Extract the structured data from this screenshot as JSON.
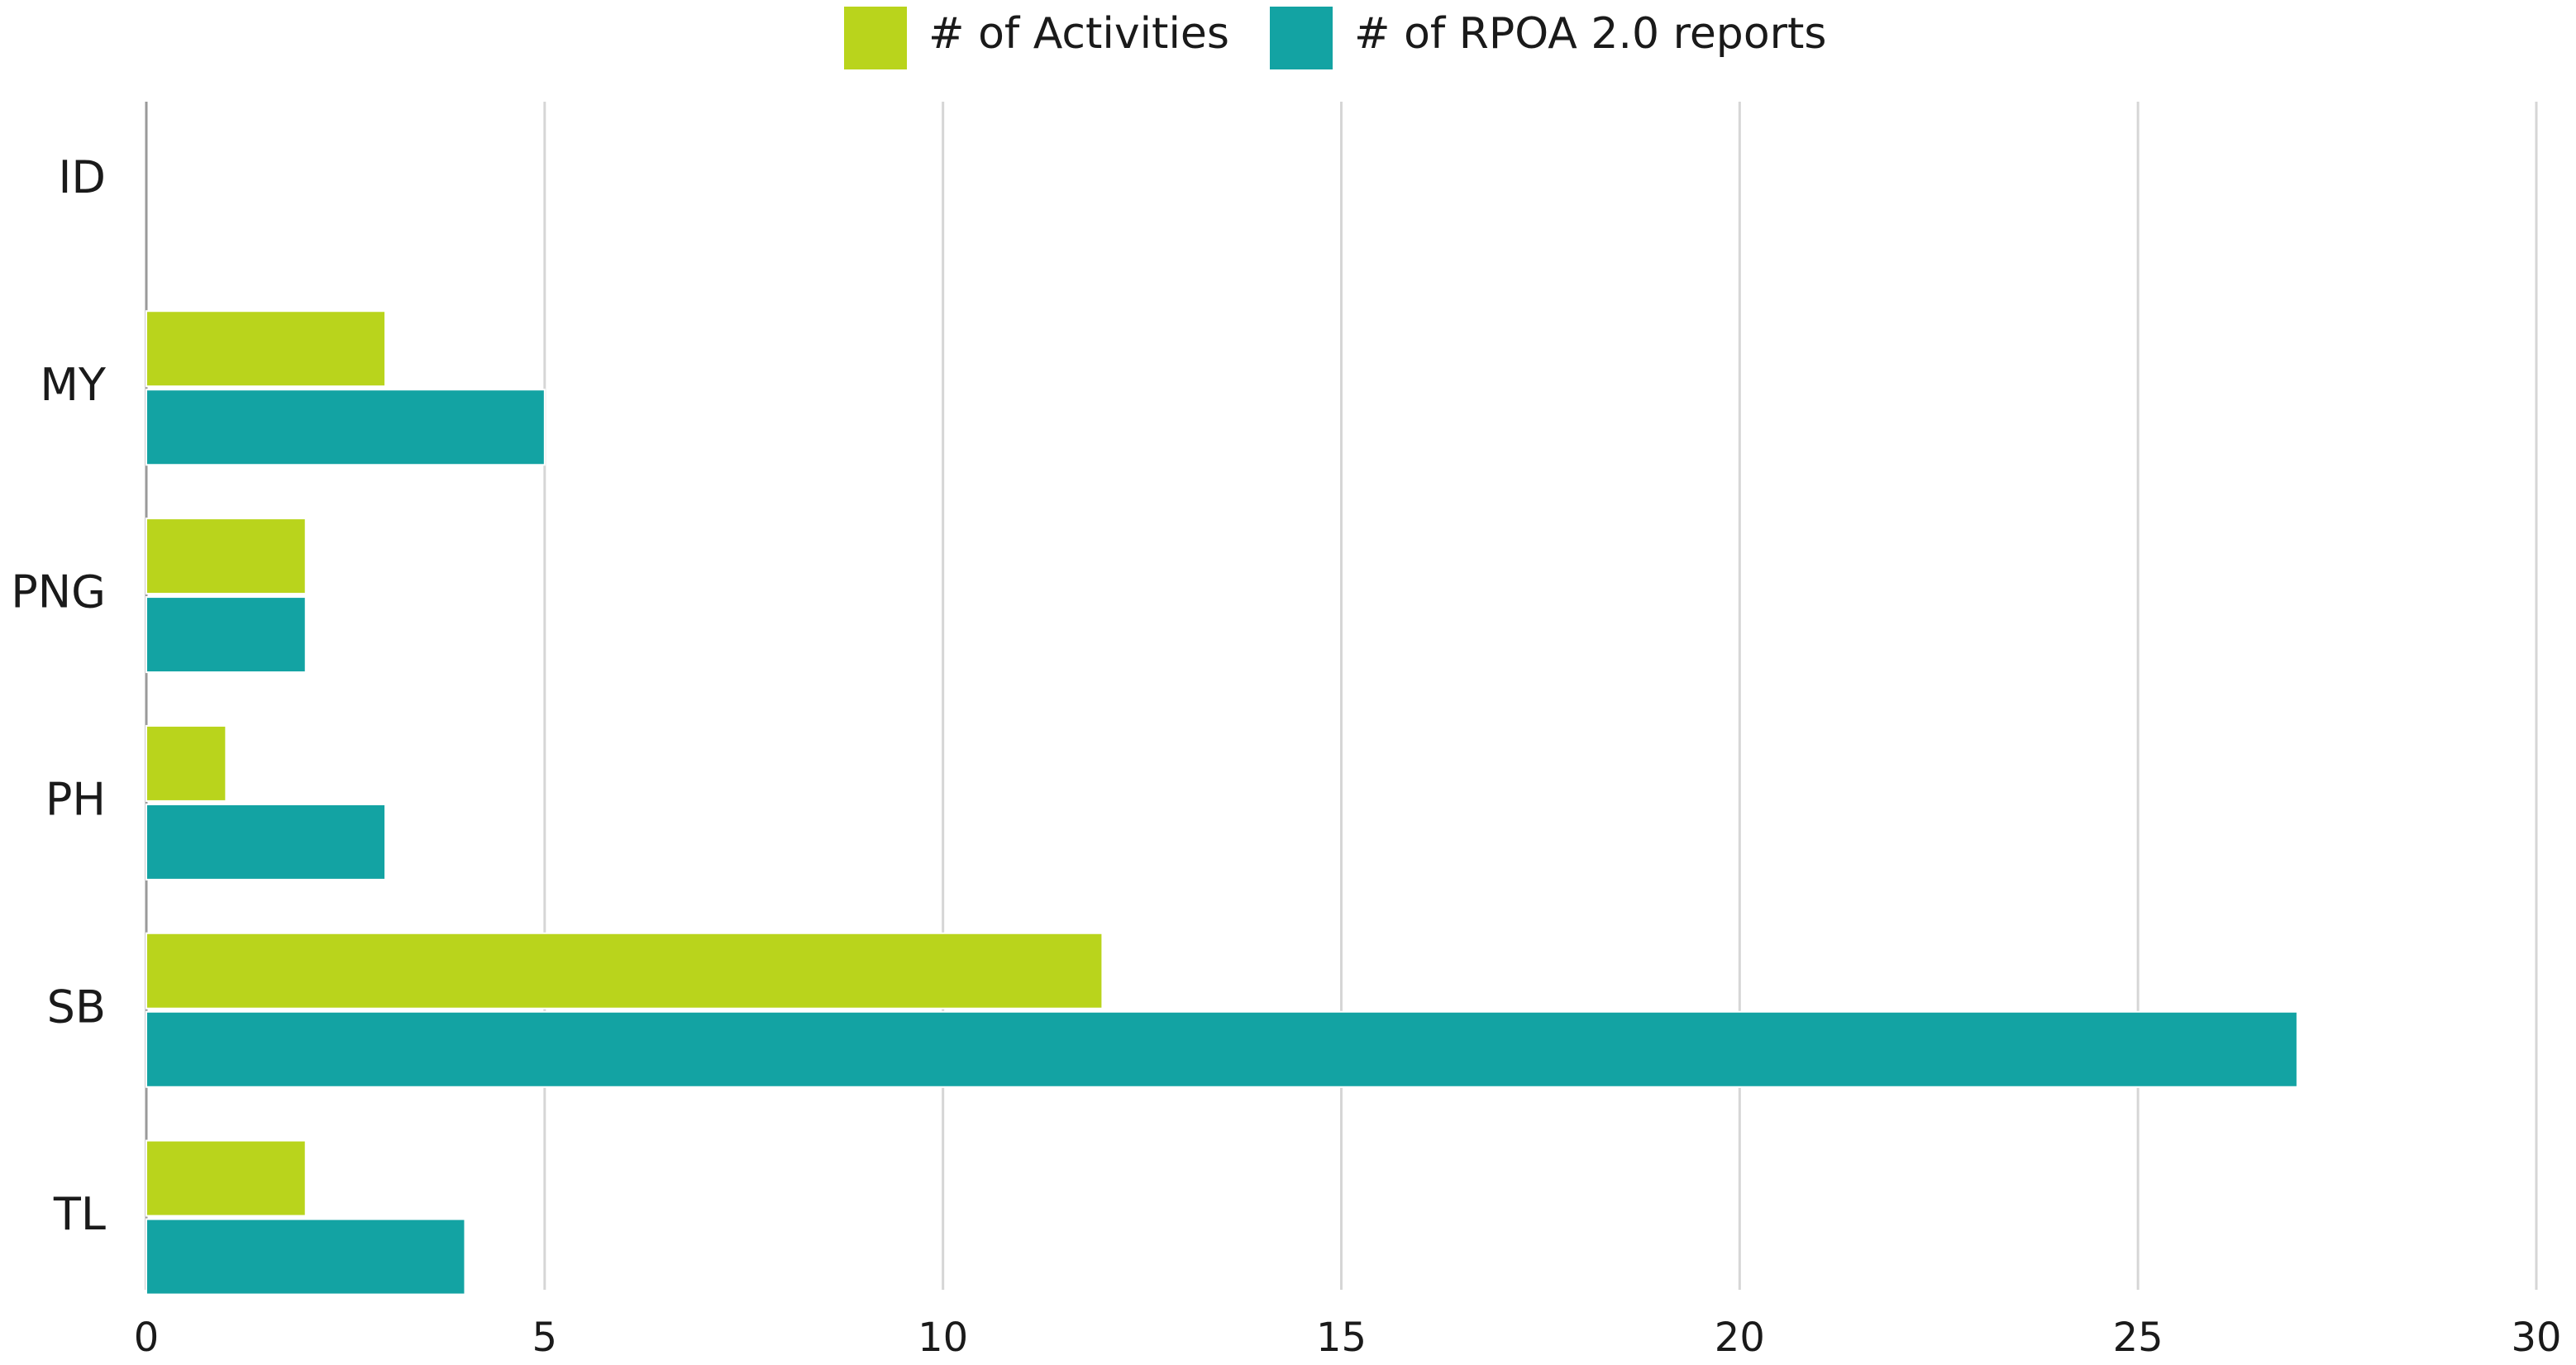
{
  "chart_data": {
    "type": "bar",
    "orientation": "horizontal",
    "categories": [
      "ID",
      "MY",
      "PNG",
      "PH",
      "SB",
      "TL"
    ],
    "series": [
      {
        "name": "# of Activities",
        "color": "#b9d41c",
        "values": [
          0,
          3,
          2,
          1,
          12,
          2
        ]
      },
      {
        "name": "# of RPOA 2.0 reports",
        "color": "#13a3a3",
        "values": [
          0,
          5,
          2,
          3,
          27,
          4
        ]
      }
    ],
    "xlim": [
      0,
      30
    ],
    "xticks": [
      0,
      5,
      10,
      15,
      20,
      25,
      30
    ],
    "grid": true,
    "legend": "top"
  }
}
